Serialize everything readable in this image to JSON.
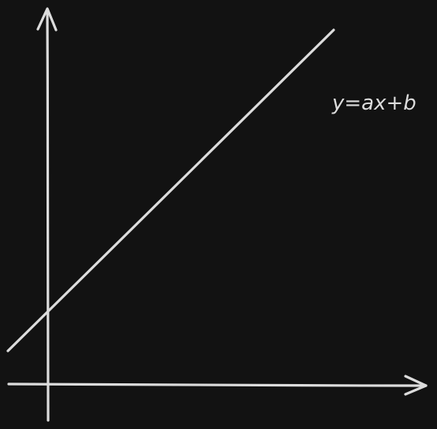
{
  "diagram": {
    "equation_label": "y=ax+b",
    "stroke_color": "#dcdcdc",
    "background_color": "#121212",
    "elements": [
      "x-axis-arrow",
      "y-axis-arrow",
      "linear-function-line"
    ]
  }
}
